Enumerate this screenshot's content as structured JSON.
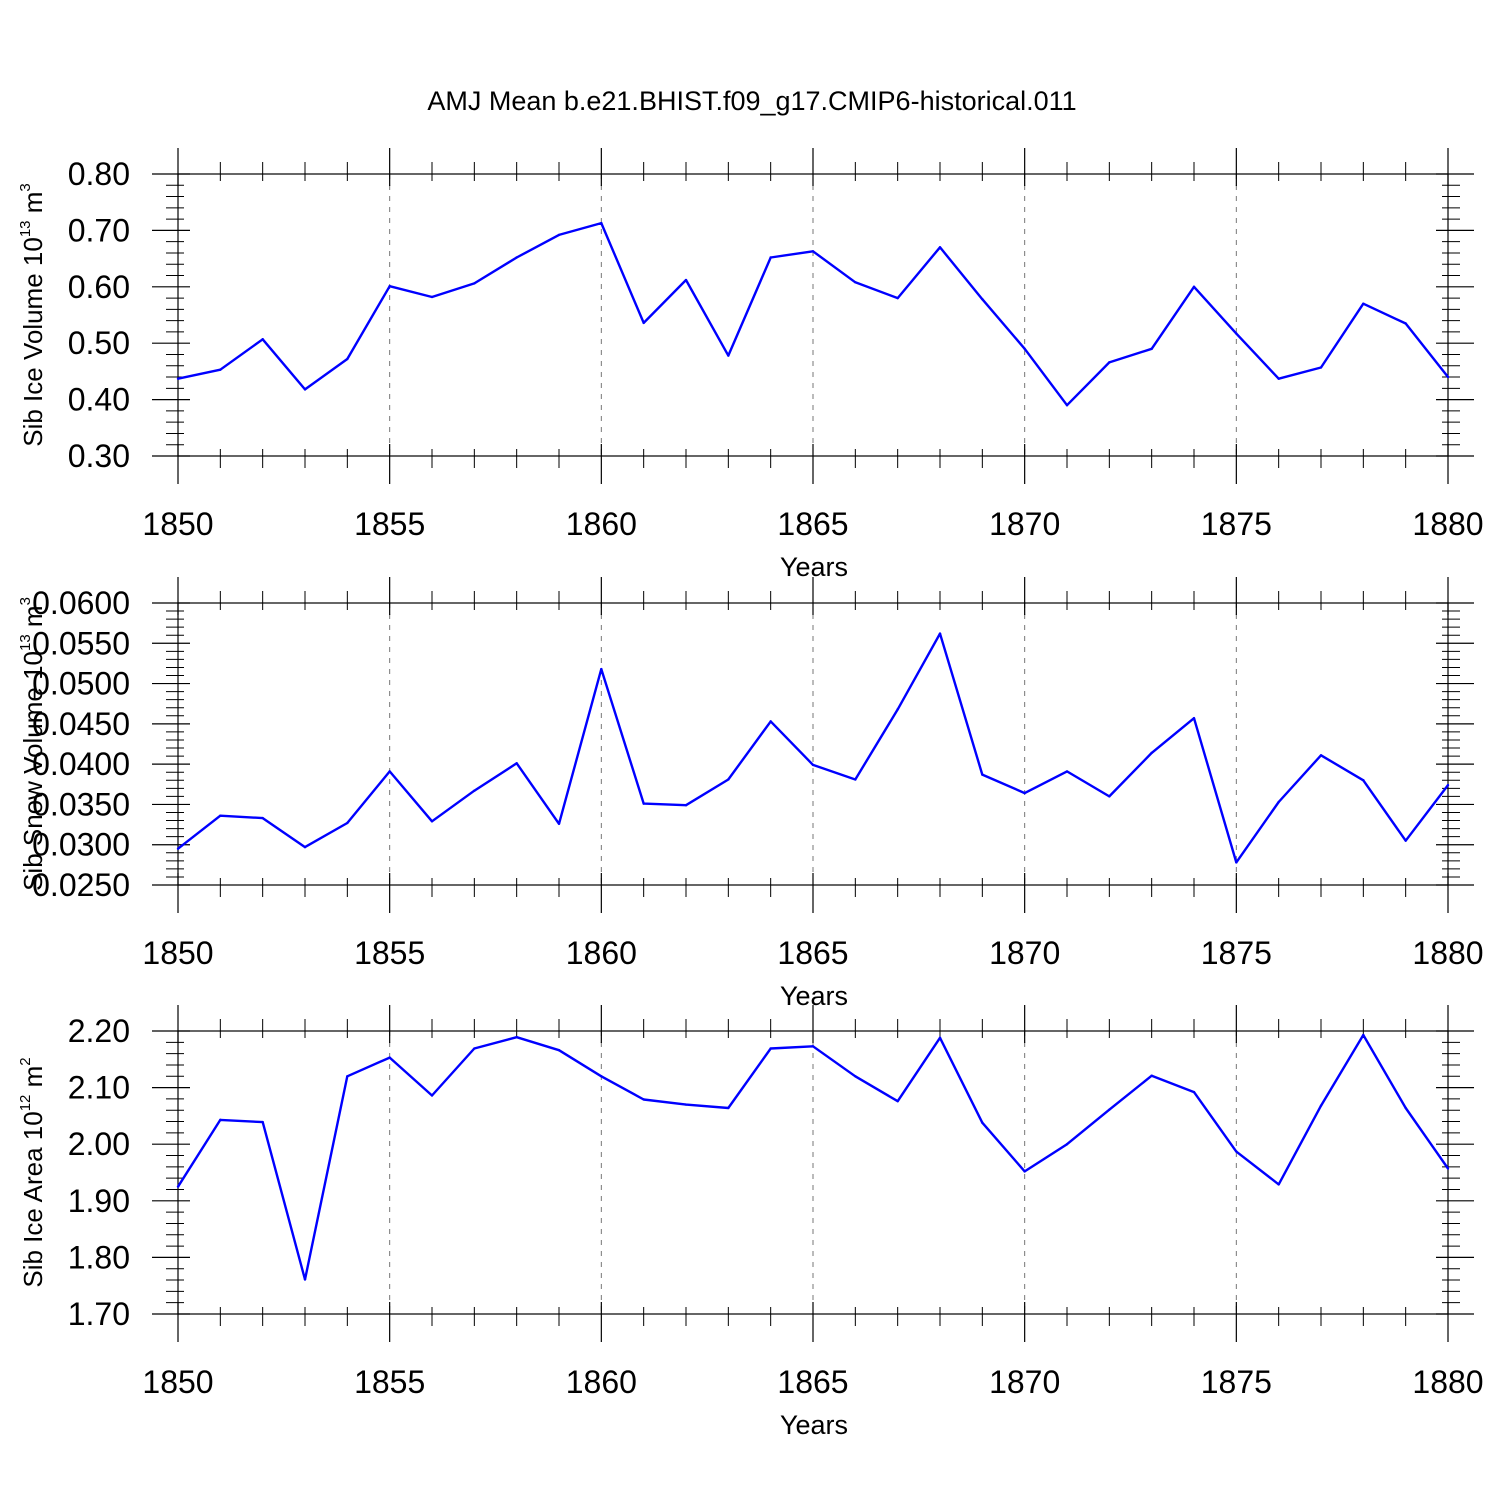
{
  "title": "AMJ Mean b.e21.BHIST.f09_g17.CMIP6-historical.011",
  "style": {
    "line_color": "#0000ff",
    "axis_color": "#000000",
    "grid_color": "#777777"
  },
  "chart_data": [
    {
      "type": "line",
      "ylabel_parts": [
        "Sib Ice Volume 10",
        "13",
        " m",
        "3"
      ],
      "xlabel": "Years",
      "xlim": [
        1850,
        1880
      ],
      "ylim": [
        0.3,
        0.8
      ],
      "yticks": [
        0.3,
        0.4,
        0.5,
        0.6,
        0.7,
        0.8
      ],
      "ytick_labels": [
        "0.30",
        "0.40",
        "0.50",
        "0.60",
        "0.70",
        "0.80"
      ],
      "xticks": [
        1850,
        1855,
        1860,
        1865,
        1870,
        1875,
        1880
      ],
      "xtick_labels": [
        "1850",
        "1855",
        "1860",
        "1865",
        "1870",
        "1875",
        "1880"
      ],
      "grid": "vertical dashed at labeled years",
      "x": [
        1850,
        1851,
        1852,
        1853,
        1854,
        1855,
        1856,
        1857,
        1858,
        1859,
        1860,
        1861,
        1862,
        1863,
        1864,
        1865,
        1866,
        1867,
        1868,
        1869,
        1870,
        1871,
        1872,
        1873,
        1874,
        1875,
        1876,
        1877,
        1878,
        1879,
        1880
      ],
      "values": [
        0.437,
        0.453,
        0.507,
        0.418,
        0.472,
        0.601,
        0.582,
        0.606,
        0.652,
        0.692,
        0.713,
        0.536,
        0.612,
        0.478,
        0.652,
        0.663,
        0.608,
        0.58,
        0.67,
        0.578,
        0.49,
        0.39,
        0.466,
        0.49,
        0.6,
        0.517,
        0.437,
        0.457,
        0.57,
        0.535,
        0.44
      ]
    },
    {
      "type": "line",
      "ylabel_parts": [
        "Sib Snow Volume 10",
        "13",
        " m",
        "3"
      ],
      "xlabel": "Years",
      "xlim": [
        1850,
        1880
      ],
      "ylim": [
        0.025,
        0.06
      ],
      "yticks": [
        0.025,
        0.03,
        0.035,
        0.04,
        0.045,
        0.05,
        0.055,
        0.06
      ],
      "ytick_labels": [
        "0.0250",
        "0.0300",
        "0.0350",
        "0.0400",
        "0.0450",
        "0.0500",
        "0.0550",
        "0.0600"
      ],
      "xticks": [
        1850,
        1855,
        1860,
        1865,
        1870,
        1875,
        1880
      ],
      "xtick_labels": [
        "1850",
        "1855",
        "1860",
        "1865",
        "1870",
        "1875",
        "1880"
      ],
      "grid": "vertical dashed at labeled years",
      "x": [
        1850,
        1851,
        1852,
        1853,
        1854,
        1855,
        1856,
        1857,
        1858,
        1859,
        1860,
        1861,
        1862,
        1863,
        1864,
        1865,
        1866,
        1867,
        1868,
        1869,
        1870,
        1871,
        1872,
        1873,
        1874,
        1875,
        1876,
        1877,
        1878,
        1879,
        1880
      ],
      "values": [
        0.0295,
        0.0336,
        0.0333,
        0.0297,
        0.0327,
        0.0391,
        0.0329,
        0.0367,
        0.0401,
        0.0326,
        0.0518,
        0.0351,
        0.0349,
        0.0381,
        0.0453,
        0.0399,
        0.0381,
        0.0468,
        0.0562,
        0.0387,
        0.0364,
        0.0391,
        0.036,
        0.0414,
        0.0457,
        0.0278,
        0.0353,
        0.0411,
        0.038,
        0.0305,
        0.0374
      ]
    },
    {
      "type": "line",
      "ylabel_parts": [
        "Sib Ice Area 10",
        "12",
        " m",
        "2"
      ],
      "xlabel": "Years",
      "xlim": [
        1850,
        1880
      ],
      "ylim": [
        1.7,
        2.2
      ],
      "yticks": [
        1.7,
        1.8,
        1.9,
        2.0,
        2.1,
        2.2
      ],
      "ytick_labels": [
        "1.70",
        "1.80",
        "1.90",
        "2.00",
        "2.10",
        "2.20"
      ],
      "xticks": [
        1850,
        1855,
        1860,
        1865,
        1870,
        1875,
        1880
      ],
      "xtick_labels": [
        "1850",
        "1855",
        "1860",
        "1865",
        "1870",
        "1875",
        "1880"
      ],
      "grid": "vertical dashed at labeled years",
      "x": [
        1850,
        1851,
        1852,
        1853,
        1854,
        1855,
        1856,
        1857,
        1858,
        1859,
        1860,
        1861,
        1862,
        1863,
        1864,
        1865,
        1866,
        1867,
        1868,
        1869,
        1870,
        1871,
        1872,
        1873,
        1874,
        1875,
        1876,
        1877,
        1878,
        1879,
        1880
      ],
      "values": [
        1.925,
        2.043,
        2.039,
        1.761,
        2.12,
        2.153,
        2.086,
        2.169,
        2.189,
        2.166,
        2.12,
        2.079,
        2.07,
        2.064,
        2.169,
        2.173,
        2.12,
        2.076,
        2.188,
        2.038,
        1.952,
        2.0,
        2.061,
        2.121,
        2.092,
        1.987,
        1.929,
        2.068,
        2.193,
        2.064,
        1.957
      ]
    }
  ]
}
